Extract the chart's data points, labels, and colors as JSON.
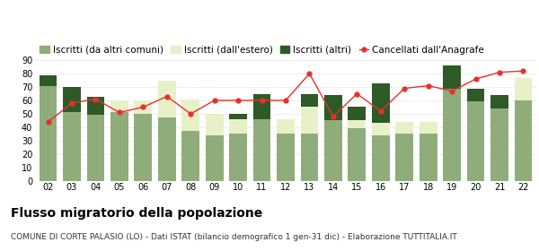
{
  "years": [
    "02",
    "03",
    "04",
    "05",
    "06",
    "07",
    "08",
    "09",
    "10",
    "11",
    "12",
    "13",
    "14",
    "15",
    "16",
    "17",
    "18",
    "19",
    "20",
    "21",
    "22"
  ],
  "iscritti_altri_comuni": [
    71,
    51,
    49,
    51,
    50,
    47,
    37,
    34,
    35,
    46,
    35,
    35,
    45,
    39,
    34,
    35,
    35,
    69,
    59,
    54,
    60
  ],
  "iscritti_estero": [
    0,
    0,
    0,
    9,
    10,
    28,
    24,
    16,
    11,
    0,
    11,
    20,
    0,
    6,
    9,
    9,
    9,
    0,
    0,
    0,
    17
  ],
  "iscritti_altri": [
    8,
    19,
    14,
    0,
    0,
    0,
    0,
    0,
    4,
    19,
    0,
    10,
    19,
    10,
    30,
    0,
    0,
    17,
    10,
    10,
    0
  ],
  "cancellati": [
    44,
    58,
    61,
    51,
    55,
    63,
    50,
    60,
    60,
    60,
    60,
    80,
    48,
    65,
    52,
    69,
    71,
    67,
    76,
    81,
    82
  ],
  "color_iscritti_comuni": "#8fad7a",
  "color_iscritti_estero": "#e8f0c8",
  "color_iscritti_altri": "#2d5a27",
  "color_cancellati": "#e8302a",
  "ylim": [
    0,
    90
  ],
  "yticks": [
    0,
    10,
    20,
    30,
    40,
    50,
    60,
    70,
    80,
    90
  ],
  "title": "Flusso migratorio della popolazione",
  "subtitle": "COMUNE DI CORTE PALASIO (LO) - Dati ISTAT (bilancio demografico 1 gen-31 dic) - Elaborazione TUTTITALIA.IT",
  "legend_labels": [
    "Iscritti (da altri comuni)",
    "Iscritti (dall'estero)",
    "Iscritti (altri)",
    "Cancellati dall'Anagrafe"
  ],
  "title_fontsize": 10,
  "subtitle_fontsize": 6.5,
  "legend_fontsize": 7.5,
  "tick_fontsize": 7,
  "bar_width": 0.75
}
